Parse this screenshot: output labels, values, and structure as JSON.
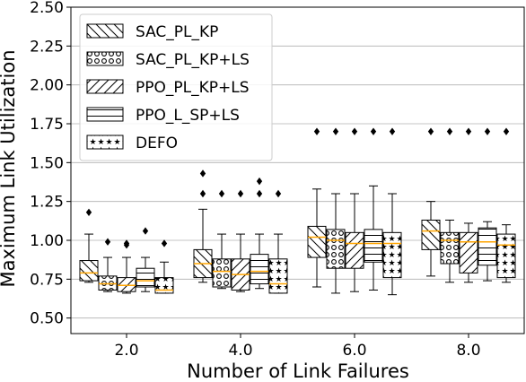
{
  "chart_data": {
    "type": "boxplot",
    "xlabel": "Number of Link Failures",
    "ylabel": "Maximum Link Utilization",
    "ylim": [
      0.4,
      2.5
    ],
    "yticks": [
      0.5,
      0.75,
      1.0,
      1.25,
      1.5,
      1.75,
      2.0,
      2.25,
      2.5
    ],
    "ytick_labels": [
      "0.50",
      "0.75",
      "1.00",
      "1.25",
      "1.50",
      "1.75",
      "2.00",
      "2.25",
      "2.50"
    ],
    "categories": [
      "2.0",
      "4.0",
      "6.0",
      "8.0"
    ],
    "grid": "horizontal",
    "legend_position": "top-left",
    "median_color": "#ffa500",
    "series": [
      {
        "name": "SAC_PL_KP",
        "hatch": "diag-back",
        "boxes": [
          {
            "whislo": 0.73,
            "q1": 0.74,
            "med": 0.79,
            "q3": 0.87,
            "whishi": 1.04,
            "fliers": [
              1.18
            ]
          },
          {
            "whislo": 0.73,
            "q1": 0.76,
            "med": 0.85,
            "q3": 0.94,
            "whishi": 1.2,
            "fliers": [
              1.3,
              1.43
            ]
          },
          {
            "whislo": 0.7,
            "q1": 0.89,
            "med": 1.02,
            "q3": 1.09,
            "whishi": 1.33,
            "fliers": [
              1.7
            ]
          },
          {
            "whislo": 0.77,
            "q1": 0.94,
            "med": 1.06,
            "q3": 1.13,
            "whishi": 1.25,
            "fliers": [
              1.7
            ]
          }
        ]
      },
      {
        "name": "SAC_PL_KP+LS",
        "hatch": "circles",
        "boxes": [
          {
            "whislo": 0.67,
            "q1": 0.68,
            "med": 0.72,
            "q3": 0.77,
            "whishi": 0.89,
            "fliers": [
              0.99
            ]
          },
          {
            "whislo": 0.69,
            "q1": 0.7,
            "med": 0.8,
            "q3": 0.88,
            "whishi": 1.04,
            "fliers": [
              1.3
            ]
          },
          {
            "whislo": 0.66,
            "q1": 0.82,
            "med": 1.0,
            "q3": 1.07,
            "whishi": 1.3,
            "fliers": [
              1.7
            ]
          },
          {
            "whislo": 0.73,
            "q1": 0.85,
            "med": 1.0,
            "q3": 1.05,
            "whishi": 1.13,
            "fliers": [
              1.7
            ]
          }
        ]
      },
      {
        "name": "PPO_PL_KP+LS",
        "hatch": "diag-fwd",
        "boxes": [
          {
            "whislo": 0.66,
            "q1": 0.67,
            "med": 0.71,
            "q3": 0.76,
            "whishi": 0.89,
            "fliers": [
              0.97,
              0.98
            ]
          },
          {
            "whislo": 0.67,
            "q1": 0.68,
            "med": 0.78,
            "q3": 0.88,
            "whishi": 1.04,
            "fliers": [
              1.3
            ]
          },
          {
            "whislo": 0.67,
            "q1": 0.82,
            "med": 0.98,
            "q3": 1.05,
            "whishi": 1.3,
            "fliers": [
              1.7
            ]
          },
          {
            "whislo": 0.73,
            "q1": 0.79,
            "med": 0.99,
            "q3": 1.05,
            "whishi": 1.11,
            "fliers": [
              1.7
            ]
          }
        ]
      },
      {
        "name": "PPO_L_SP+LS",
        "hatch": "horizontal",
        "boxes": [
          {
            "whislo": 0.67,
            "q1": 0.7,
            "med": 0.74,
            "q3": 0.82,
            "whishi": 0.89,
            "fliers": [
              1.06
            ]
          },
          {
            "whislo": 0.69,
            "q1": 0.72,
            "med": 0.8,
            "q3": 0.91,
            "whishi": 1.04,
            "fliers": [
              1.3,
              1.38
            ]
          },
          {
            "whislo": 0.68,
            "q1": 0.86,
            "med": 0.98,
            "q3": 1.07,
            "whishi": 1.35,
            "fliers": [
              1.7
            ]
          },
          {
            "whislo": 0.74,
            "q1": 0.84,
            "med": 0.99,
            "q3": 1.08,
            "whishi": 1.12,
            "fliers": [
              1.7
            ]
          }
        ]
      },
      {
        "name": "DEFO",
        "hatch": "stars",
        "boxes": [
          {
            "whislo": 0.66,
            "q1": 0.66,
            "med": 0.68,
            "q3": 0.76,
            "whishi": 0.86,
            "fliers": [
              0.98
            ]
          },
          {
            "whislo": 0.66,
            "q1": 0.66,
            "med": 0.72,
            "q3": 0.88,
            "whishi": 1.04,
            "fliers": [
              1.3
            ]
          },
          {
            "whislo": 0.65,
            "q1": 0.76,
            "med": 0.98,
            "q3": 1.05,
            "whishi": 1.3,
            "fliers": [
              1.7
            ]
          },
          {
            "whislo": 0.73,
            "q1": 0.76,
            "med": 0.97,
            "q3": 1.04,
            "whishi": 1.1,
            "fliers": [
              1.7
            ]
          }
        ]
      }
    ]
  }
}
